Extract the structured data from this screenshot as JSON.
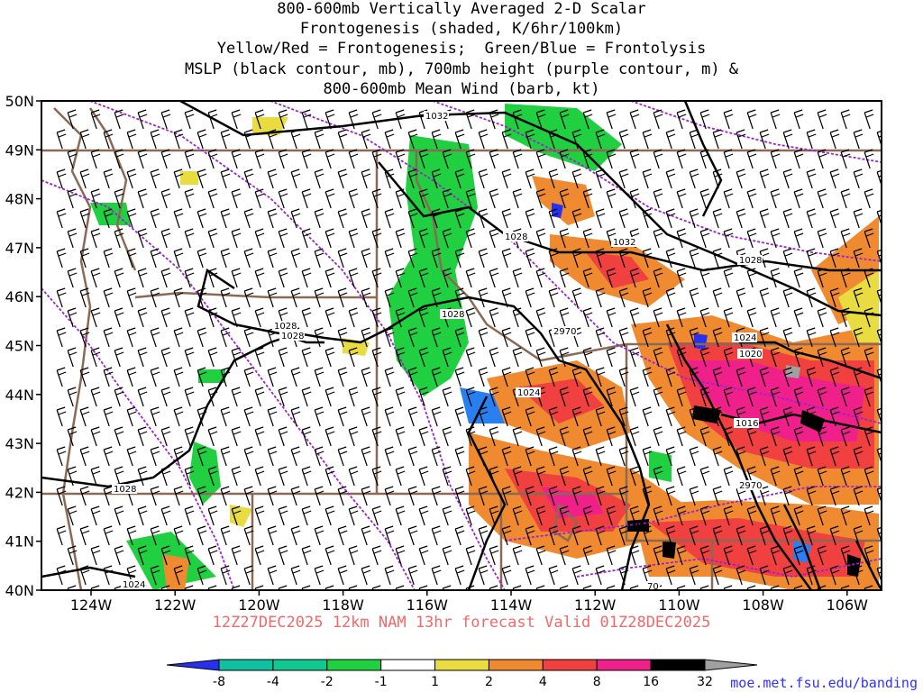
{
  "title": {
    "line1": "800-600mb Vertically Averaged 2-D Scalar",
    "line2": "Frontogenesis (shaded, K/6hr/100km)",
    "line3": "Yellow/Red = Frontogenesis;  Green/Blue = Frontolysis",
    "line4": "MSLP (black contour, mb), 700mb height (purple contour, m) &",
    "line5": "800-600mb Mean Wind (barb, kt)"
  },
  "lat_labels": [
    "50N",
    "49N",
    "48N",
    "47N",
    "46N",
    "45N",
    "44N",
    "43N",
    "42N",
    "41N",
    "40N"
  ],
  "lon_labels": [
    "124W",
    "122W",
    "120W",
    "118W",
    "116W",
    "114W",
    "112W",
    "110W",
    "108W",
    "106W"
  ],
  "contour_labels": {
    "mslp": [
      "1032",
      "1028",
      "1032",
      "1028",
      "1028",
      "1028",
      "1028",
      "1024",
      "1024",
      "1020",
      "1016",
      "1028",
      "1024"
    ],
    "height": [
      "2970",
      "2970",
      "70"
    ]
  },
  "colorbar": {
    "ticks": [
      "-8",
      "-4",
      "-2",
      "-1",
      "1",
      "2",
      "4",
      "8",
      "16",
      "32"
    ],
    "colors": [
      "#2830f0",
      "#10c0a0",
      "#10c890",
      "#20d040",
      "#ffffff",
      "#e8dc40",
      "#f08a30",
      "#f04040",
      "#f0208a",
      "#000000",
      "#a0a0a0"
    ]
  },
  "colors": {
    "mslp": "#000000",
    "height": "#a020d0",
    "borders": "#8a6a55",
    "footer": "#f06a6a",
    "credit": "#3030ff"
  },
  "footer": "12Z27DEC2025 12km NAM 13hr forecast Valid 01Z28DEC2025",
  "credit": "moe.met.fsu.edu/banding"
}
